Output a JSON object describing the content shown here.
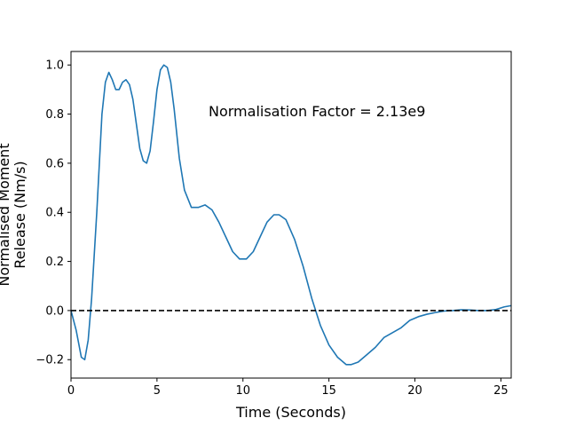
{
  "chart_data": {
    "type": "line",
    "xlabel": "Time (Seconds)",
    "ylabel_lines": [
      "Normalised Moment",
      "Release (Nm/s)"
    ],
    "annotation": "Normalisation Factor = 2.13e9",
    "xlim": [
      0,
      25.6
    ],
    "ylim": [
      -0.275,
      1.055
    ],
    "xticks": [
      0,
      5,
      10,
      15,
      20,
      25
    ],
    "yticks": [
      -0.2,
      0.0,
      0.2,
      0.4,
      0.6,
      0.8,
      1.0
    ],
    "xtick_labels": [
      "0",
      "5",
      "10",
      "15",
      "20",
      "25"
    ],
    "ytick_labels": [
      "−0.2",
      "0.0",
      "0.2",
      "0.4",
      "0.6",
      "0.8",
      "1.0"
    ],
    "reference_line": {
      "y": 0.0,
      "style": "dashed",
      "color": "#000000"
    },
    "grid": false,
    "series": [
      {
        "color": "#1f77b4",
        "x": [
          0.0,
          0.3,
          0.6,
          0.8,
          1.0,
          1.2,
          1.5,
          1.8,
          2.0,
          2.2,
          2.4,
          2.6,
          2.8,
          3.0,
          3.2,
          3.4,
          3.6,
          3.8,
          4.0,
          4.2,
          4.4,
          4.6,
          4.8,
          5.0,
          5.2,
          5.4,
          5.6,
          5.8,
          6.0,
          6.3,
          6.6,
          7.0,
          7.4,
          7.8,
          8.2,
          8.6,
          9.0,
          9.4,
          9.8,
          10.2,
          10.6,
          11.0,
          11.4,
          11.8,
          12.1,
          12.5,
          13.0,
          13.5,
          14.0,
          14.5,
          15.0,
          15.5,
          16.0,
          16.3,
          16.7,
          17.2,
          17.7,
          18.2,
          18.7,
          19.2,
          19.7,
          20.2,
          20.7,
          21.2,
          21.7,
          22.2,
          22.7,
          23.2,
          23.7,
          24.2,
          24.7,
          25.2,
          25.6
        ],
        "y": [
          0.0,
          -0.08,
          -0.19,
          -0.2,
          -0.12,
          0.05,
          0.4,
          0.8,
          0.93,
          0.97,
          0.94,
          0.9,
          0.9,
          0.93,
          0.94,
          0.92,
          0.86,
          0.76,
          0.66,
          0.61,
          0.6,
          0.65,
          0.77,
          0.9,
          0.98,
          1.0,
          0.99,
          0.93,
          0.82,
          0.62,
          0.49,
          0.42,
          0.42,
          0.43,
          0.41,
          0.36,
          0.3,
          0.24,
          0.21,
          0.21,
          0.24,
          0.3,
          0.36,
          0.39,
          0.39,
          0.37,
          0.29,
          0.18,
          0.05,
          -0.06,
          -0.14,
          -0.19,
          -0.22,
          -0.22,
          -0.21,
          -0.18,
          -0.15,
          -0.11,
          -0.09,
          -0.07,
          -0.04,
          -0.025,
          -0.015,
          -0.008,
          -0.002,
          0.0,
          0.003,
          0.002,
          0.0,
          0.0,
          0.004,
          0.015,
          0.02
        ]
      }
    ]
  }
}
